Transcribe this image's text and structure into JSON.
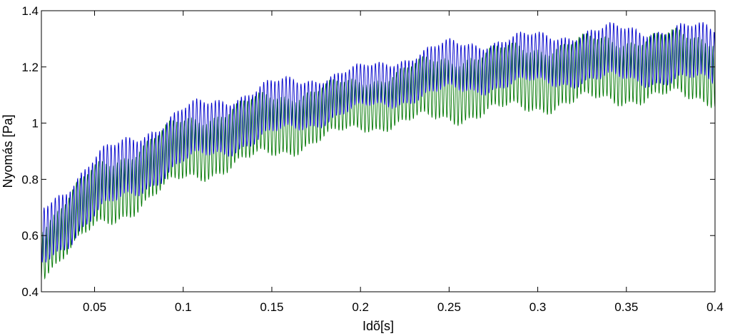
{
  "chart_data": {
    "type": "line",
    "title": "",
    "xlabel": "Idõ[s]",
    "ylabel": "Nyomás [Pa]",
    "xlim": [
      0.02,
      0.4
    ],
    "ylim": [
      0.4,
      1.4
    ],
    "grid": false,
    "legend": "none",
    "x_ticks": [
      0.05,
      0.1,
      0.15,
      0.2,
      0.25,
      0.3,
      0.35,
      0.4
    ],
    "x_tick_labels": [
      "0.05",
      "0.1",
      "0.15",
      "0.2",
      "0.25",
      "0.3",
      "0.35",
      "0.4"
    ],
    "y_ticks": [
      0.4,
      0.6,
      0.8,
      1.0,
      1.2,
      1.4
    ],
    "y_tick_labels": [
      "0.4",
      "0.6",
      "0.8",
      "1",
      "1.2",
      "1.4"
    ],
    "series": [
      {
        "color": "#0000cc",
        "oscillation_period_s": 0.0021,
        "x": [
          0.02,
          0.05,
          0.1,
          0.15,
          0.2,
          0.25,
          0.3,
          0.35,
          0.4
        ],
        "upper_envelope": [
          0.72,
          0.9,
          1.07,
          1.16,
          1.21,
          1.3,
          1.33,
          1.36,
          1.36
        ],
        "lower_envelope": [
          0.47,
          0.64,
          0.83,
          0.93,
          1.03,
          1.09,
          1.12,
          1.13,
          1.12
        ]
      },
      {
        "color": "#007700",
        "oscillation_period_s": 0.0021,
        "x": [
          0.02,
          0.05,
          0.1,
          0.15,
          0.2,
          0.25,
          0.3,
          0.35,
          0.4
        ],
        "upper_envelope": [
          0.66,
          0.86,
          1.03,
          1.12,
          1.17,
          1.26,
          1.3,
          1.33,
          1.34
        ],
        "lower_envelope": [
          0.44,
          0.59,
          0.77,
          0.86,
          0.96,
          0.99,
          1.03,
          1.06,
          1.06
        ]
      }
    ]
  }
}
